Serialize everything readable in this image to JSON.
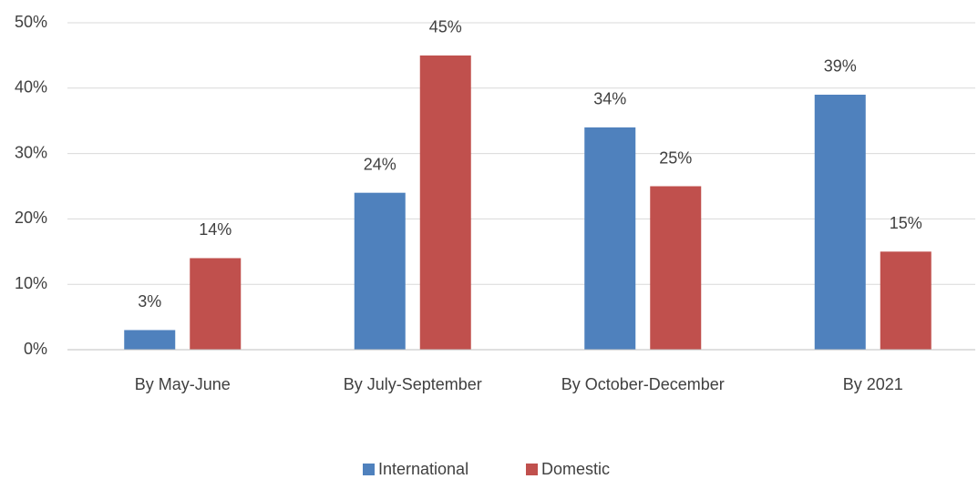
{
  "chart_data": {
    "type": "bar",
    "categories": [
      "By May-June",
      "By July-September",
      "By October-December",
      "By 2021"
    ],
    "series": [
      {
        "name": "International",
        "color": "#4f81bd",
        "values": [
          3,
          24,
          34,
          39
        ],
        "value_labels": [
          "3%",
          "24%",
          "34%",
          "39%"
        ]
      },
      {
        "name": "Domestic",
        "color": "#c0504d",
        "values": [
          14,
          45,
          25,
          15
        ],
        "value_labels": [
          "14%",
          "45%",
          "25%",
          "15%"
        ]
      }
    ],
    "ylim": [
      0,
      50
    ],
    "yticks": [
      {
        "value": 0,
        "label": "0%"
      },
      {
        "value": 10,
        "label": "10%"
      },
      {
        "value": 20,
        "label": "20%"
      },
      {
        "value": 30,
        "label": "30%"
      },
      {
        "value": 40,
        "label": "40%"
      },
      {
        "value": 50,
        "label": "50%"
      }
    ],
    "grid": true,
    "legend": "bottom"
  }
}
